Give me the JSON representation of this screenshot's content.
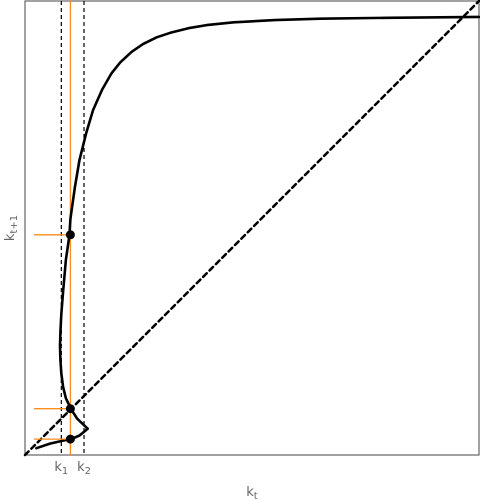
{
  "chart_data": {
    "type": "line",
    "xlabel": "kt",
    "ylabel": "kt+1",
    "xlim": [
      0,
      100
    ],
    "ylim": [
      0,
      100
    ],
    "grid": false,
    "legend": "none",
    "series": [
      {
        "style": "solid",
        "color": "#000000",
        "x": [
          2.5,
          5.5,
          8.5,
          10.2,
          12.0,
          13.8,
          11.5,
          10.2,
          9.0,
          8.4,
          8.0,
          7.8,
          7.7,
          7.8,
          8.0,
          8.4,
          9.0,
          9.8,
          10.0,
          11.0,
          12.0,
          13.5,
          15.0,
          17.0,
          19.0,
          21.0,
          23.5,
          26.0,
          29.0,
          32.0,
          36.0,
          40.0,
          46.0,
          55.0,
          65.0,
          80.0,
          100.0
        ],
        "y": [
          1.5,
          2.5,
          3.2,
          3.5,
          4.3,
          5.8,
          8.0,
          10.0,
          12.5,
          15.0,
          18.0,
          21.0,
          24.0,
          27.0,
          31.0,
          36.0,
          43.0,
          48.5,
          52.0,
          59.0,
          65.0,
          71.0,
          76.0,
          80.5,
          84.0,
          86.5,
          88.8,
          90.5,
          92.0,
          93.0,
          94.0,
          94.7,
          95.3,
          95.8,
          96.1,
          96.3,
          96.5
        ]
      },
      {
        "style": "dashed",
        "color": "#000000",
        "x": [
          0,
          100
        ],
        "y": [
          0,
          100
        ]
      }
    ],
    "vlines": [
      {
        "x": 8.0,
        "style": "dashed",
        "label": "k1"
      },
      {
        "x": 13.0,
        "style": "dashed",
        "label": "k2"
      },
      {
        "x": 10.0,
        "style": "solid",
        "color": "#ff8c1a"
      }
    ],
    "hsegments": [
      {
        "y": 3.5,
        "color": "#ff8c1a"
      },
      {
        "y": 10.2,
        "color": "#ff8c1a"
      },
      {
        "y": 48.5,
        "color": "#ff8c1a"
      }
    ],
    "points": [
      {
        "x": 10.0,
        "y": 3.5
      },
      {
        "x": 10.0,
        "y": 10.2
      },
      {
        "x": 10.0,
        "y": 48.5
      }
    ]
  }
}
